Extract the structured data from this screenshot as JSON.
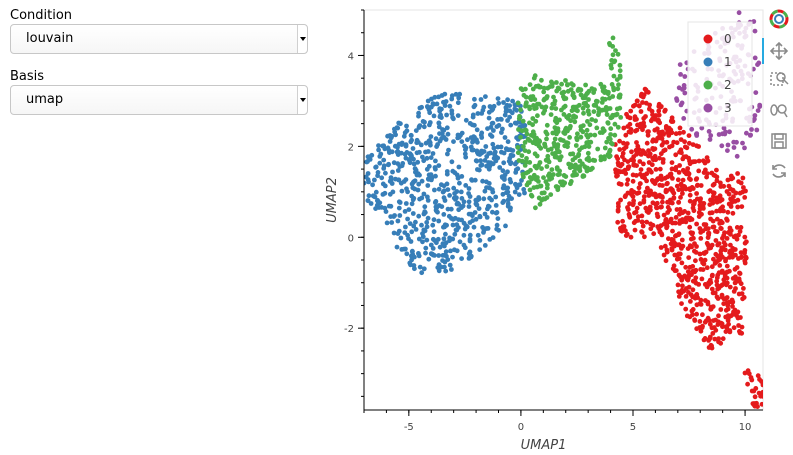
{
  "widgets": {
    "condition": {
      "label": "Condition",
      "value": "louvain"
    },
    "basis": {
      "label": "Basis",
      "value": "umap"
    }
  },
  "toolbar": {
    "tools": [
      "bokeh-logo-icon",
      "pan-icon",
      "box-zoom-icon",
      "wheel-zoom-icon",
      "save-icon",
      "reset-icon"
    ],
    "active_color": "#26aae1"
  },
  "chart_data": {
    "type": "scatter",
    "title": "",
    "xlabel": "UMAP1",
    "ylabel": "UMAP2",
    "xlim": [
      -7,
      10.8
    ],
    "ylim": [
      -3.8,
      5
    ],
    "xticks": [
      -5,
      0,
      5,
      10
    ],
    "yticks": [
      -2,
      0,
      2,
      4
    ],
    "x_tick_labels": [
      "-5",
      "0",
      "5",
      "10"
    ],
    "y_tick_labels": [
      "-2",
      "0",
      "2",
      "4"
    ],
    "legend_placement": "top-right",
    "legend": [
      {
        "name": "0",
        "color": "#e41a1c"
      },
      {
        "name": "1",
        "color": "#377eb8"
      },
      {
        "name": "2",
        "color": "#4daf4a"
      },
      {
        "name": "3",
        "color": "#984ea3"
      }
    ],
    "clusters": [
      {
        "name": "0",
        "color": "#e41a1c",
        "polygon": [
          [
            4.2,
            2.4
          ],
          [
            5.6,
            3.3
          ],
          [
            7,
            2.6
          ],
          [
            8,
            2.0
          ],
          [
            9,
            1.3
          ],
          [
            10,
            1.5
          ],
          [
            10.1,
            0
          ],
          [
            9.9,
            -2.1
          ],
          [
            8.5,
            -2.5
          ],
          [
            7.2,
            -1.6
          ],
          [
            6.1,
            0
          ],
          [
            4.3,
            0
          ],
          [
            4.2,
            1.5
          ]
        ],
        "count": 900,
        "seed": 11
      },
      {
        "name": "0",
        "color": "#e41a1c",
        "polygon": [
          [
            9.9,
            -2.9
          ],
          [
            10.8,
            -3
          ],
          [
            10.8,
            -3.8
          ],
          [
            10.3,
            -3.8
          ]
        ],
        "count": 25,
        "seed": 12
      },
      {
        "name": "1",
        "color": "#377eb8",
        "polygon": [
          [
            -7,
            1.7
          ],
          [
            -6,
            2.2
          ],
          [
            -5,
            2.8
          ],
          [
            -3.5,
            3.2
          ],
          [
            -2,
            3.1
          ],
          [
            0,
            3.1
          ],
          [
            0.2,
            2.5
          ],
          [
            0.2,
            1.0
          ],
          [
            -0.5,
            0.3
          ],
          [
            -1.8,
            -0.3
          ],
          [
            -3,
            -0.7
          ],
          [
            -4.3,
            -0.9
          ],
          [
            -5.3,
            -0.5
          ],
          [
            -6,
            0.3
          ],
          [
            -7,
            0.9
          ]
        ],
        "count": 720,
        "seed": 21
      },
      {
        "name": "2",
        "color": "#4daf4a",
        "polygon": [
          [
            -0.2,
            3.2
          ],
          [
            0.7,
            3.6
          ],
          [
            2.8,
            3.4
          ],
          [
            4,
            3.4
          ],
          [
            3.9,
            4.4
          ],
          [
            4.4,
            4.4
          ],
          [
            4.5,
            2.6
          ],
          [
            4,
            1.7
          ],
          [
            3.5,
            1.6
          ],
          [
            2.5,
            1.2
          ],
          [
            1.5,
            1.0
          ],
          [
            0.6,
            0.6
          ],
          [
            0.2,
            1.1
          ],
          [
            -0.3,
            2.0
          ]
        ],
        "count": 450,
        "seed": 31
      },
      {
        "name": "3",
        "color": "#984ea3",
        "polygon": [
          [
            7,
            3.8
          ],
          [
            8.5,
            4.4
          ],
          [
            9.6,
            5
          ],
          [
            10.6,
            5
          ],
          [
            10.7,
            2.2
          ],
          [
            9.8,
            1.7
          ],
          [
            8.5,
            2.1
          ],
          [
            7.4,
            2.3
          ],
          [
            6.8,
            3.2
          ]
        ],
        "count": 170,
        "seed": 41
      }
    ]
  }
}
